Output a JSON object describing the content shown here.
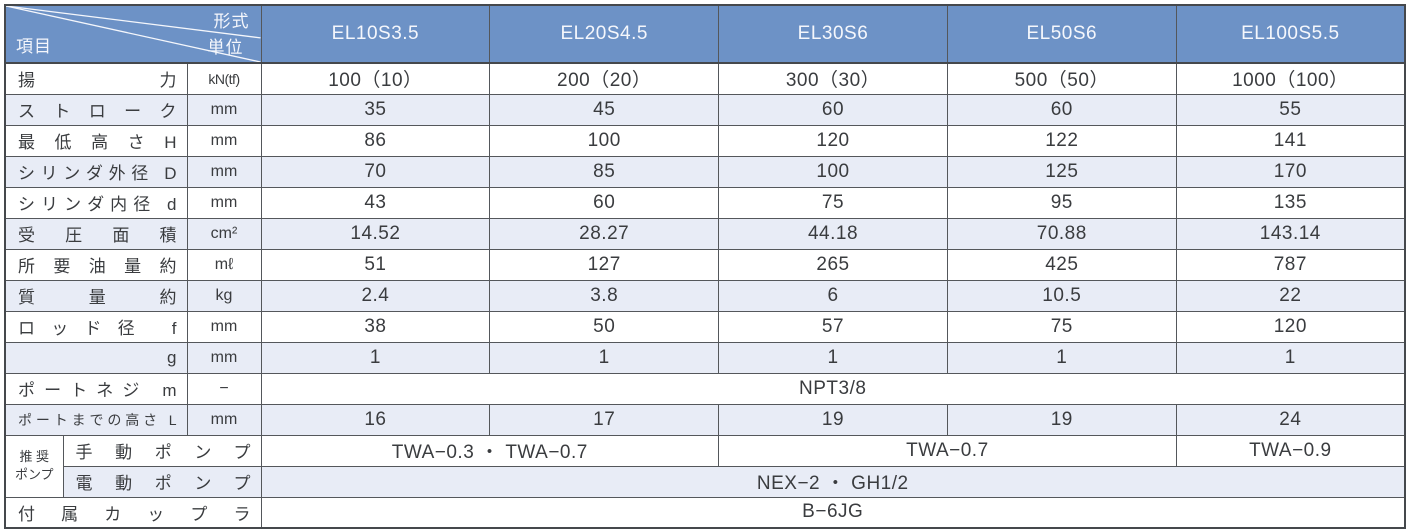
{
  "colors": {
    "header_bg": "#6d92c6",
    "header_text": "#f5f7fc",
    "row_alt": "#e8ecf6",
    "row_base": "#ffffff",
    "border": "#54575b",
    "text": "#3a3c3f"
  },
  "table": {
    "corner": {
      "top_right": "形式",
      "middle_right": "単位",
      "bottom_left": "項目"
    },
    "columns": [
      "EL10S3.5",
      "EL20S4.5",
      "EL30S6",
      "EL50S6",
      "EL100S5.5"
    ],
    "rows": [
      {
        "shade": false,
        "cells": [
          {
            "text": "揚力",
            "class": "label",
            "colspan": 2
          },
          {
            "text": "kN(tf)",
            "class": "unit tight"
          },
          {
            "text": "100（10）",
            "class": "val"
          },
          {
            "text": "200（20）",
            "class": "val"
          },
          {
            "text": "300（30）",
            "class": "val"
          },
          {
            "text": "500（50）",
            "class": "val"
          },
          {
            "text": "1000（100）",
            "class": "val"
          }
        ]
      },
      {
        "shade": true,
        "cells": [
          {
            "text": "ストローク",
            "class": "label",
            "colspan": 2
          },
          {
            "text": "mm",
            "class": "unit"
          },
          {
            "text": "35",
            "class": "val"
          },
          {
            "text": "45",
            "class": "val"
          },
          {
            "text": "60",
            "class": "val"
          },
          {
            "text": "60",
            "class": "val"
          },
          {
            "text": "55",
            "class": "val"
          }
        ]
      },
      {
        "shade": false,
        "cells": [
          {
            "text": "最低高さH",
            "class": "label",
            "colspan": 2
          },
          {
            "text": "mm",
            "class": "unit"
          },
          {
            "text": "86",
            "class": "val"
          },
          {
            "text": "100",
            "class": "val"
          },
          {
            "text": "120",
            "class": "val"
          },
          {
            "text": "122",
            "class": "val"
          },
          {
            "text": "141",
            "class": "val"
          }
        ]
      },
      {
        "shade": true,
        "cells": [
          {
            "text": "シリンダ外径 D",
            "class": "label",
            "colspan": 2
          },
          {
            "text": "mm",
            "class": "unit"
          },
          {
            "text": "70",
            "class": "val"
          },
          {
            "text": "85",
            "class": "val"
          },
          {
            "text": "100",
            "class": "val"
          },
          {
            "text": "125",
            "class": "val"
          },
          {
            "text": "170",
            "class": "val"
          }
        ]
      },
      {
        "shade": false,
        "cells": [
          {
            "text": "シリンダ内径 d",
            "class": "label",
            "colspan": 2
          },
          {
            "text": "mm",
            "class": "unit"
          },
          {
            "text": "43",
            "class": "val"
          },
          {
            "text": "60",
            "class": "val"
          },
          {
            "text": "75",
            "class": "val"
          },
          {
            "text": "95",
            "class": "val"
          },
          {
            "text": "135",
            "class": "val"
          }
        ]
      },
      {
        "shade": true,
        "cells": [
          {
            "text": "受圧面積",
            "class": "label",
            "colspan": 2
          },
          {
            "text": "cm²",
            "class": "unit"
          },
          {
            "text": "14.52",
            "class": "val"
          },
          {
            "text": "28.27",
            "class": "val"
          },
          {
            "text": "44.18",
            "class": "val"
          },
          {
            "text": "70.88",
            "class": "val"
          },
          {
            "text": "143.14",
            "class": "val"
          }
        ]
      },
      {
        "shade": false,
        "cells": [
          {
            "text": "所要油量約",
            "class": "label",
            "colspan": 2
          },
          {
            "text": "mℓ",
            "class": "unit"
          },
          {
            "text": "51",
            "class": "val"
          },
          {
            "text": "127",
            "class": "val"
          },
          {
            "text": "265",
            "class": "val"
          },
          {
            "text": "425",
            "class": "val"
          },
          {
            "text": "787",
            "class": "val"
          }
        ]
      },
      {
        "shade": true,
        "cells": [
          {
            "text": "質量約",
            "class": "label",
            "colspan": 2
          },
          {
            "text": "kg",
            "class": "unit"
          },
          {
            "text": "2.4",
            "class": "val"
          },
          {
            "text": "3.8",
            "class": "val"
          },
          {
            "text": "6",
            "class": "val"
          },
          {
            "text": "10.5",
            "class": "val"
          },
          {
            "text": "22",
            "class": "val"
          }
        ]
      },
      {
        "shade": false,
        "cells": [
          {
            "text": "ロッド径 f",
            "class": "label",
            "colspan": 2
          },
          {
            "text": "mm",
            "class": "unit"
          },
          {
            "text": "38",
            "class": "val"
          },
          {
            "text": "50",
            "class": "val"
          },
          {
            "text": "57",
            "class": "val"
          },
          {
            "text": "75",
            "class": "val"
          },
          {
            "text": "120",
            "class": "val"
          }
        ]
      },
      {
        "shade": true,
        "cells": [
          {
            "text": "g",
            "class": "label right",
            "colspan": 2
          },
          {
            "text": "mm",
            "class": "unit"
          },
          {
            "text": "1",
            "class": "val"
          },
          {
            "text": "1",
            "class": "val"
          },
          {
            "text": "1",
            "class": "val"
          },
          {
            "text": "1",
            "class": "val"
          },
          {
            "text": "1",
            "class": "val"
          }
        ]
      },
      {
        "shade": false,
        "cells": [
          {
            "text": "ポートネジ m",
            "class": "label",
            "colspan": 2
          },
          {
            "text": "−",
            "class": "unit"
          },
          {
            "text": "NPT3/8",
            "class": "val",
            "colspan": 5
          }
        ]
      },
      {
        "shade": true,
        "cells": [
          {
            "text": "ポートまでの高さ L",
            "class": "label small",
            "colspan": 2
          },
          {
            "text": "mm",
            "class": "unit"
          },
          {
            "text": "16",
            "class": "val"
          },
          {
            "text": "17",
            "class": "val"
          },
          {
            "text": "19",
            "class": "val"
          },
          {
            "text": "19",
            "class": "val"
          },
          {
            "text": "24",
            "class": "val"
          }
        ]
      },
      {
        "shade": false,
        "cells": [
          {
            "text": "推 奨\nポンプ",
            "class": "group",
            "rowspan": 2
          },
          {
            "text": "手動ポンプ",
            "class": "label",
            "colspan": 2
          },
          {
            "text": "TWA−0.3 ・ TWA−0.7",
            "class": "val",
            "colspan": 2
          },
          {
            "text": "TWA−0.7",
            "class": "val",
            "colspan": 2
          },
          {
            "text": "TWA−0.9",
            "class": "val"
          }
        ]
      },
      {
        "shade": true,
        "cells": [
          {
            "text": "電動ポンプ",
            "class": "label",
            "colspan": 2
          },
          {
            "text": "NEX−2 ・ GH1/2",
            "class": "val",
            "colspan": 5
          }
        ]
      },
      {
        "shade": false,
        "cells": [
          {
            "text": "付属カップラ",
            "class": "label",
            "colspan": 3
          },
          {
            "text": "B−6JG",
            "class": "val",
            "colspan": 5
          }
        ]
      }
    ]
  }
}
